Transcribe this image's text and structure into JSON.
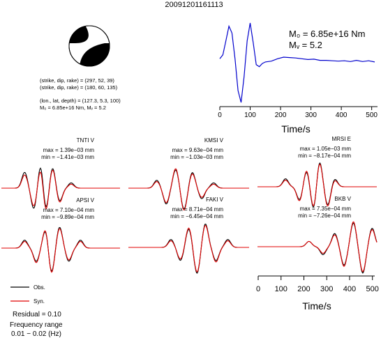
{
  "title": "20091201161113",
  "source_params": {
    "line1": "(strike, dip, rake) = (297, 52, 39)",
    "line2": "(strike, dip, rake) = (180, 60, 135)",
    "line3": "(lon., lat, depth) = (127.3, 5.3, 100)",
    "line4": "M₀ = 6.85e+16 Nm, Mᵥ = 5.2"
  },
  "stf": {
    "m0_label": "M₀ = 6.85e+16 Nm",
    "mw_label": "Mᵥ = 5.2",
    "xlabel": "Time/s",
    "ticks": [
      "0",
      "100",
      "200",
      "300",
      "400",
      "500"
    ],
    "color": "#0000cc"
  },
  "stations": [
    {
      "name": "TNTI V",
      "max": "max = 1.39e−03 mm",
      "min": "min = −1.41e−03 mm"
    },
    {
      "name": "KMSI V",
      "max": "max = 9.63e−04 mm",
      "min": "min = −1.03e−03 mm"
    },
    {
      "name": "MRSI E",
      "max": "max = 1.05e−03 mm",
      "min": "min = −8.17e−04 mm"
    },
    {
      "name": "APSI V",
      "max": "max = 7.10e−04 mm",
      "min": "min = −9.89e−04 mm"
    },
    {
      "name": "FAKI V",
      "max": "max = 8.71e−04 mm",
      "min": "min = −6.45e−04 mm"
    },
    {
      "name": "BKB V",
      "max": "max = 7.35e−04 mm",
      "min": "min = −7.26e−04 mm"
    }
  ],
  "waveform_axis": {
    "xlabel": "Time/s",
    "ticks": [
      "0",
      "100",
      "200",
      "300",
      "400",
      "500"
    ]
  },
  "legend": {
    "obs_label": "Obs.",
    "syn_label": "Syn.",
    "obs_color": "#000000",
    "syn_color": "#e00000"
  },
  "residual": "Residual = 0.10",
  "freq_label": "Frequency range",
  "freq_value": "0.01 − 0.02 (Hz)",
  "chart_data": [
    {
      "type": "line",
      "title": "",
      "xlabel": "Time/s",
      "ylabel": "",
      "xlim": [
        0,
        510
      ],
      "series": [
        {
          "x": [
            0,
            10,
            20,
            30,
            40,
            50,
            60,
            70,
            80,
            90,
            100,
            110,
            120,
            130,
            140,
            150,
            170,
            190,
            210,
            230,
            250,
            270,
            290,
            310,
            330,
            350,
            370,
            390,
            410,
            430,
            450,
            470,
            490,
            510
          ],
          "y": [
            0.1,
            0.2,
            0.55,
            0.92,
            0.75,
            0.1,
            -0.7,
            -1.0,
            -0.35,
            0.55,
            1.0,
            0.5,
            -0.05,
            -0.1,
            -0.02,
            0.02,
            0.04,
            0.1,
            0.14,
            0.13,
            0.12,
            0.1,
            0.08,
            0.09,
            0.06,
            0.06,
            0.05,
            0.04,
            0.05,
            0.03,
            0.06,
            0.03,
            0.05,
            0.02
          ]
        }
      ]
    },
    {
      "type": "line",
      "title": "",
      "xlabel": "Time/s",
      "ylabel": "",
      "xlim": [
        0,
        510
      ],
      "panels": [
        {
          "name": "TNTI V",
          "obs_t": [
            100,
            140,
            170,
            190,
            220,
            250,
            300
          ],
          "obs_a": [
            0.6,
            -0.8,
            1.0,
            -0.95,
            0.8,
            -0.5,
            0.2
          ],
          "syn_t": [
            100,
            140,
            170,
            190,
            220,
            250,
            300
          ],
          "syn_a": [
            0.5,
            -0.7,
            0.85,
            -1.0,
            0.75,
            -0.55,
            0.15
          ]
        },
        {
          "name": "KMSI V",
          "obs_t": [
            120,
            160,
            200,
            235,
            270,
            310,
            360
          ],
          "obs_a": [
            0.3,
            -0.6,
            0.7,
            -0.8,
            0.6,
            -0.4,
            0.2
          ],
          "syn_t": [
            120,
            160,
            200,
            235,
            270,
            310,
            360
          ],
          "syn_a": [
            0.25,
            -0.55,
            0.75,
            -0.85,
            0.55,
            -0.35,
            0.15
          ]
        },
        {
          "name": "MRSI E",
          "obs_t": [
            120,
            180,
            210,
            240,
            265,
            300,
            330
          ],
          "obs_a": [
            0.3,
            -0.5,
            0.6,
            -0.9,
            1.0,
            -0.7,
            0.3
          ],
          "syn_t": [
            120,
            180,
            210,
            240,
            265,
            300,
            330
          ],
          "syn_a": [
            0.25,
            -0.55,
            0.65,
            -0.85,
            0.95,
            -0.75,
            0.25
          ]
        },
        {
          "name": "APSI V",
          "obs_t": [
            100,
            150,
            190,
            215,
            250,
            290,
            340
          ],
          "obs_a": [
            0.3,
            -0.5,
            0.7,
            -0.95,
            0.8,
            -0.5,
            0.3
          ],
          "syn_t": [
            100,
            150,
            190,
            215,
            250,
            290,
            340
          ],
          "syn_a": [
            0.25,
            -0.55,
            0.75,
            -1.0,
            0.75,
            -0.45,
            0.25
          ]
        },
        {
          "name": "FAKI V",
          "obs_t": [
            180,
            220,
            255,
            290,
            325,
            370,
            420
          ],
          "obs_a": [
            0.3,
            -0.5,
            0.7,
            -1.0,
            0.9,
            -0.5,
            0.3
          ],
          "syn_t": [
            180,
            220,
            255,
            290,
            325,
            370,
            420
          ],
          "syn_a": [
            0.25,
            -0.45,
            0.75,
            -0.95,
            0.85,
            -0.55,
            0.25
          ]
        },
        {
          "name": "BKB V",
          "obs_t": [
            220,
            280,
            330,
            370,
            410,
            450,
            490
          ],
          "obs_a": [
            0.2,
            -0.3,
            0.5,
            -0.7,
            0.9,
            -1.0,
            0.7
          ],
          "syn_t": [
            220,
            280,
            330,
            370,
            410,
            450,
            490
          ],
          "syn_a": [
            0.2,
            -0.25,
            0.45,
            -0.75,
            0.95,
            -0.95,
            0.65
          ]
        }
      ]
    }
  ]
}
